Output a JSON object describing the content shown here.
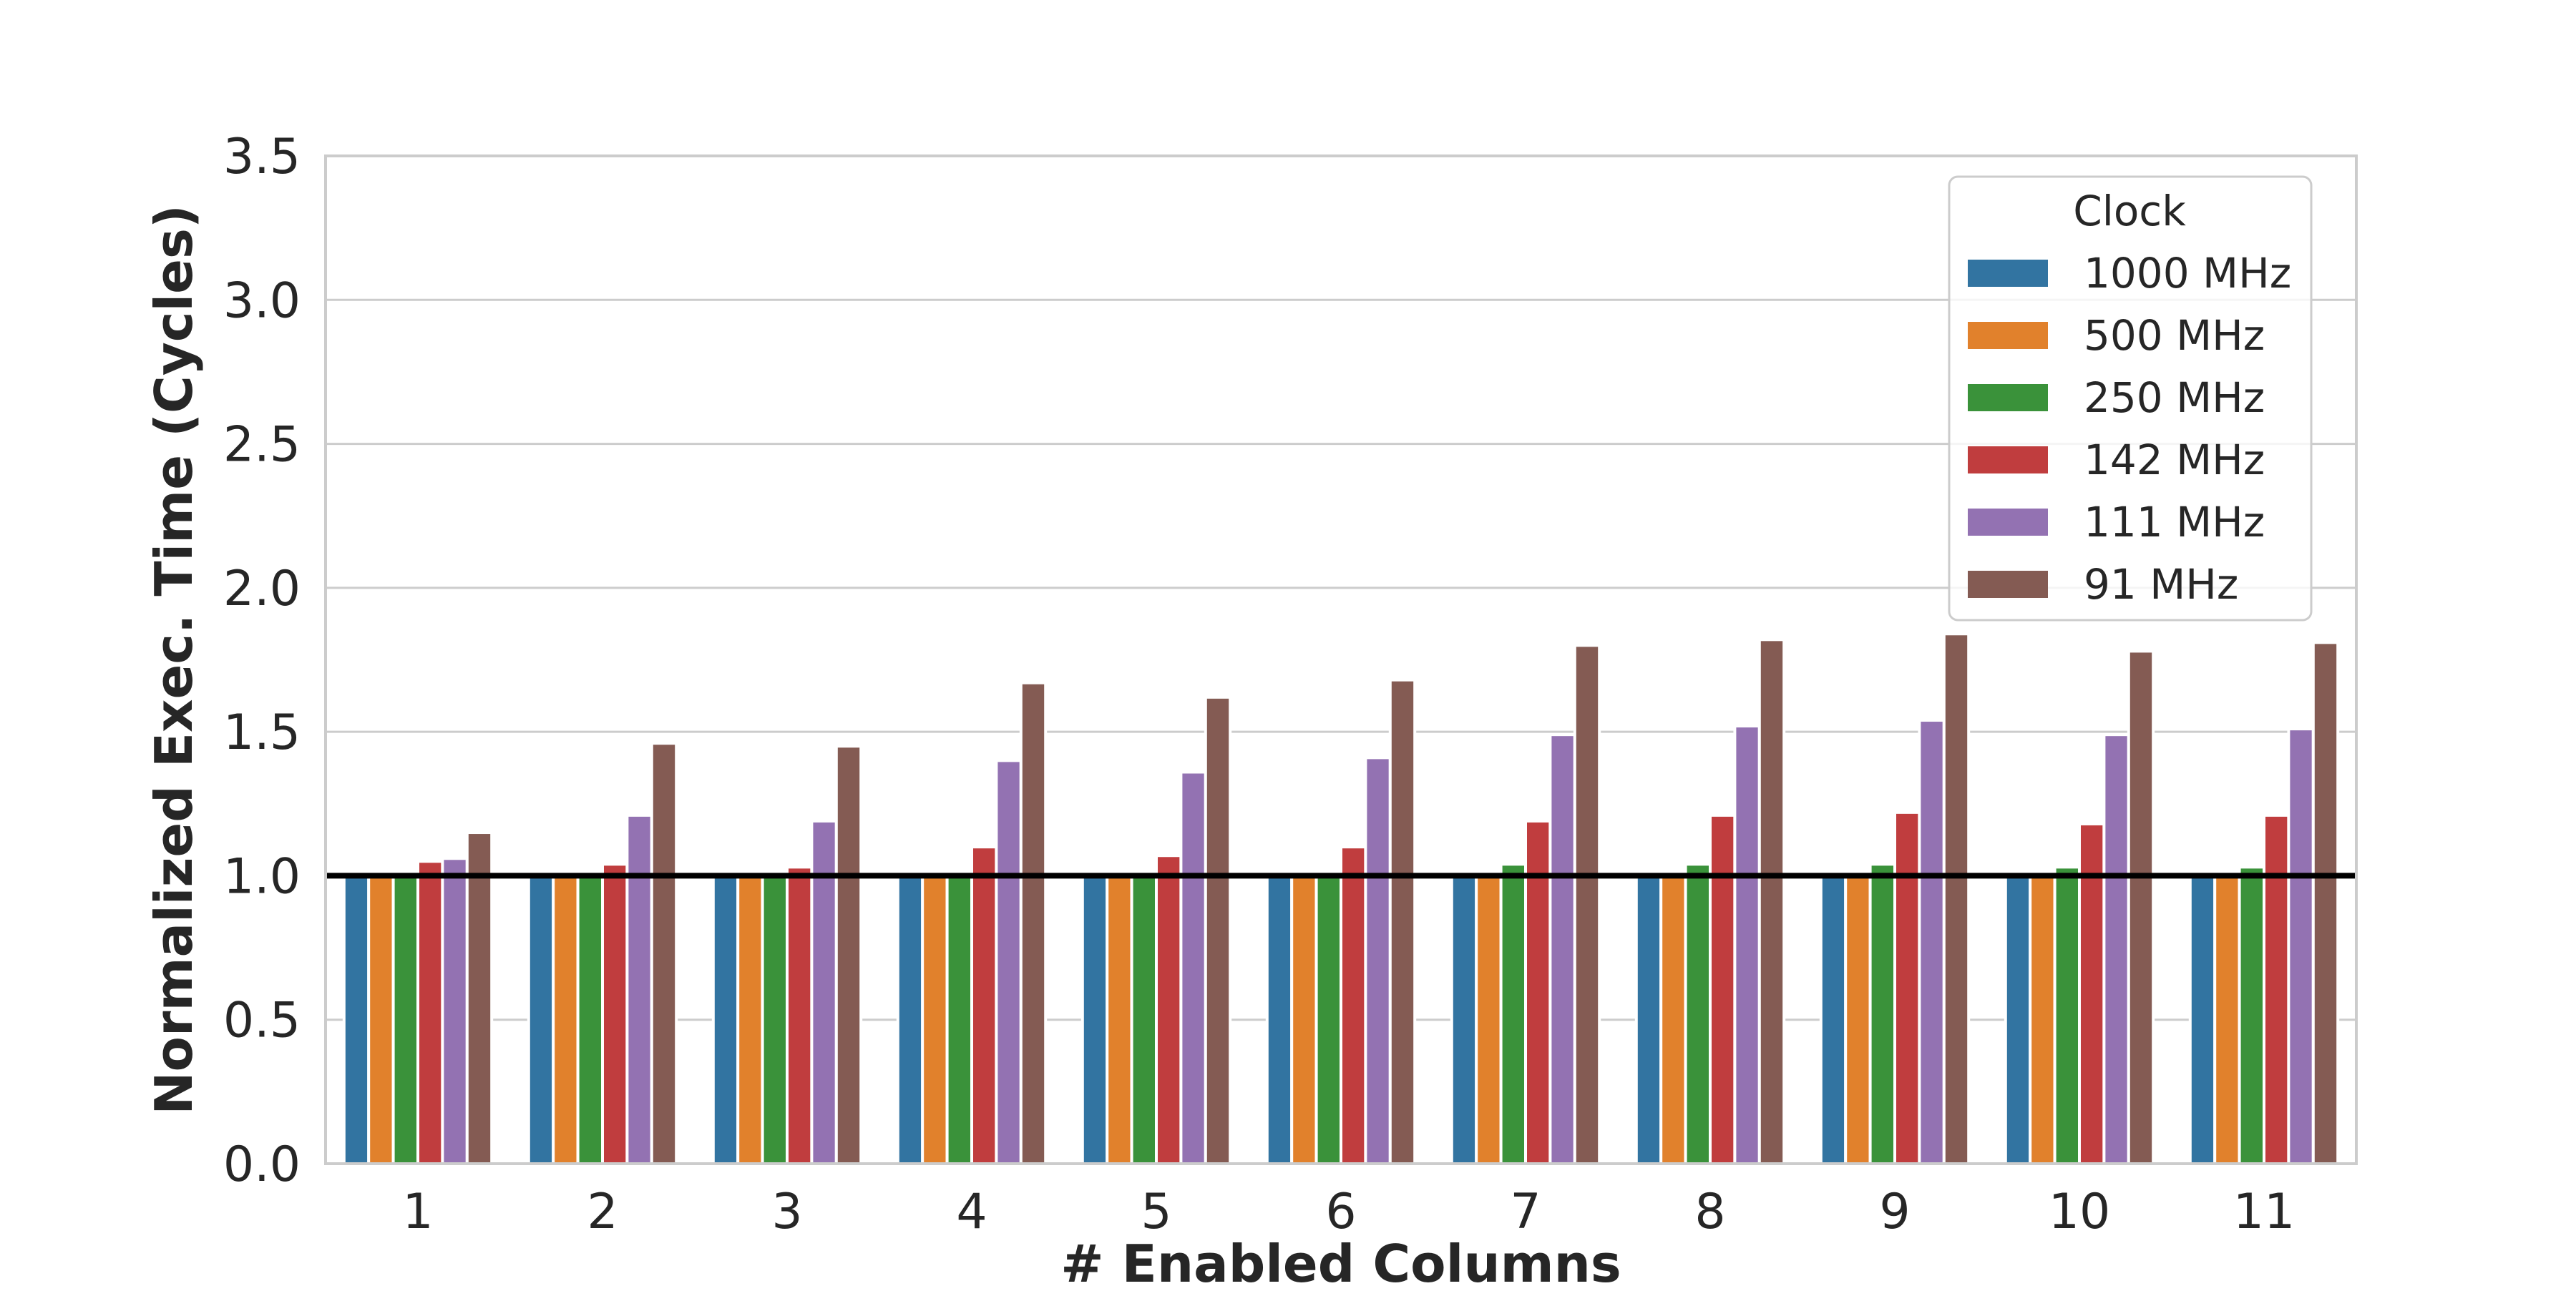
{
  "chart_data": {
    "type": "bar",
    "xlabel": "# Enabled Columns",
    "ylabel": "Normalized Exec. Time (Cycles)",
    "ylim": [
      0,
      3.5
    ],
    "yticks": [
      "0.0",
      "0.5",
      "1.0",
      "1.5",
      "2.0",
      "2.5",
      "3.0",
      "3.5"
    ],
    "categories": [
      "1",
      "2",
      "3",
      "4",
      "5",
      "6",
      "7",
      "8",
      "9",
      "10",
      "11"
    ],
    "grid": "horizontal",
    "reference_line": {
      "y": 1.0,
      "color": "#000000"
    },
    "legend": {
      "title": "Clock",
      "placement": "top-right"
    },
    "series": [
      {
        "name": "1000 MHz",
        "color": "#3274a1",
        "values": [
          1.0,
          1.0,
          1.0,
          1.0,
          1.0,
          1.0,
          1.0,
          1.0,
          1.0,
          1.0,
          1.0
        ]
      },
      {
        "name": "500 MHz",
        "color": "#e1812c",
        "values": [
          1.0,
          1.0,
          1.0,
          1.0,
          1.0,
          1.0,
          1.0,
          1.0,
          1.0,
          1.0,
          1.0
        ]
      },
      {
        "name": "250 MHz",
        "color": "#3a923a",
        "values": [
          1.01,
          1.0,
          1.0,
          1.01,
          1.0,
          1.01,
          1.04,
          1.04,
          1.04,
          1.03,
          1.03
        ]
      },
      {
        "name": "142 MHz",
        "color": "#c03d3e",
        "values": [
          1.05,
          1.04,
          1.03,
          1.1,
          1.07,
          1.1,
          1.19,
          1.21,
          1.22,
          1.18,
          1.21
        ]
      },
      {
        "name": "111 MHz",
        "color": "#9372b2",
        "values": [
          1.06,
          1.21,
          1.19,
          1.4,
          1.36,
          1.41,
          1.49,
          1.52,
          1.54,
          1.49,
          1.51
        ]
      },
      {
        "name": "91 MHz",
        "color": "#845b53",
        "values": [
          1.15,
          1.46,
          1.45,
          1.67,
          1.62,
          1.68,
          1.8,
          1.82,
          1.84,
          1.78,
          1.81
        ]
      }
    ]
  }
}
